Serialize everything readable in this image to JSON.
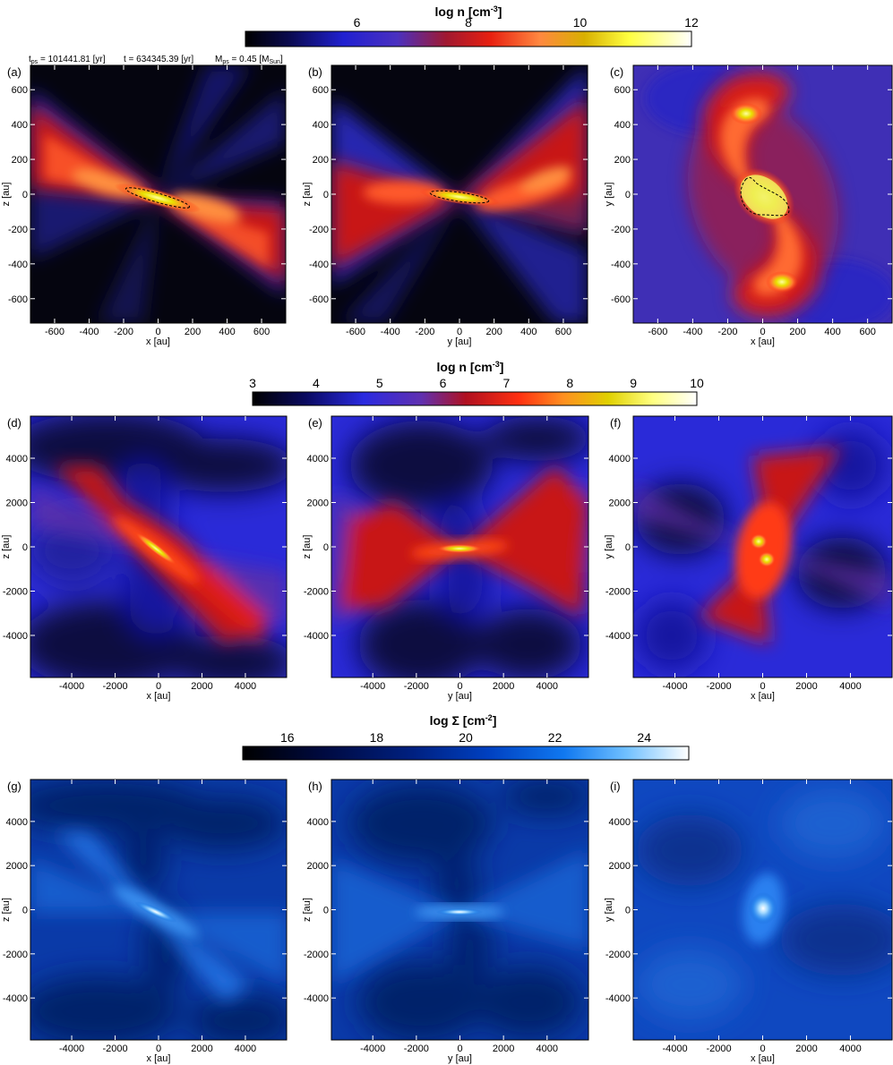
{
  "header_info": {
    "tps": "t",
    "tps_sub": "ps",
    "tps_val": " = 101441.81 [yr]",
    "t": "t = 634345.39 [yr]",
    "mps": "M",
    "mps_sub": "ps",
    "mps_val": " = 0.45 [M",
    "mps_sun": "Sun",
    "mps_close": "]"
  },
  "colorbars": [
    {
      "title": "log n [cm",
      "sup": "-3",
      "close": "]",
      "ticks": [
        "6",
        "8",
        "10",
        "12"
      ],
      "min": 4,
      "max": 12,
      "values": [
        6,
        8,
        10,
        12
      ]
    },
    {
      "title": "log n [cm",
      "sup": "-3",
      "close": "]",
      "ticks": [
        "3",
        "4",
        "5",
        "6",
        "7",
        "8",
        "9",
        "10"
      ],
      "min": 3,
      "max": 10,
      "values": [
        3,
        4,
        5,
        6,
        7,
        8,
        9,
        10
      ]
    },
    {
      "title": "log Σ [cm",
      "sup": "-2",
      "close": "]",
      "ticks": [
        "16",
        "18",
        "20",
        "22",
        "24"
      ],
      "min": 15,
      "max": 25,
      "values": [
        16,
        18,
        20,
        22,
        24
      ]
    }
  ],
  "rows": [
    {
      "ticks_y": [
        "600",
        "400",
        "200",
        "0",
        "-200",
        "-400",
        "-600"
      ],
      "ticks_x": [
        "-600",
        "-400",
        "-200",
        "0",
        "200",
        "400",
        "600"
      ],
      "range": 740,
      "tick_values": [
        -600,
        -400,
        -200,
        0,
        200,
        400,
        600
      ],
      "panels": [
        {
          "label": "(a)",
          "xlabel": "x [au]",
          "ylabel": "z [au]"
        },
        {
          "label": "(b)",
          "xlabel": "y [au]",
          "ylabel": "z [au]"
        },
        {
          "label": "(c)",
          "xlabel": "x [au]",
          "ylabel": "y [au]"
        }
      ]
    },
    {
      "ticks_y": [
        "4000",
        "2000",
        "0",
        "-2000",
        "-4000"
      ],
      "ticks_x": [
        "-4000",
        "-2000",
        "0",
        "2000",
        "4000"
      ],
      "range": 5900,
      "tick_values": [
        -4000,
        -2000,
        0,
        2000,
        4000
      ],
      "panels": [
        {
          "label": "(d)",
          "xlabel": "x [au]",
          "ylabel": "z [au]"
        },
        {
          "label": "(e)",
          "xlabel": "y [au]",
          "ylabel": "z [au]"
        },
        {
          "label": "(f)",
          "xlabel": "x [au]",
          "ylabel": "y [au]"
        }
      ]
    },
    {
      "ticks_y": [
        "4000",
        "2000",
        "0",
        "-2000",
        "-4000"
      ],
      "ticks_x": [
        "-4000",
        "-2000",
        "0",
        "2000",
        "4000"
      ],
      "range": 5900,
      "tick_values": [
        -4000,
        -2000,
        0,
        2000,
        4000
      ],
      "panels": [
        {
          "label": "(g)",
          "xlabel": "x [au]",
          "ylabel": "z [au]"
        },
        {
          "label": "(h)",
          "xlabel": "y [au]",
          "ylabel": "z [au]"
        },
        {
          "label": "(i)",
          "xlabel": "x [au]",
          "ylabel": "y [au]"
        }
      ]
    }
  ],
  "colors": {
    "cmap_density": [
      "#000000",
      "#08081a",
      "#1d1d9e",
      "#3a3ae0",
      "#6a2aa0",
      "#c01818",
      "#ff3a10",
      "#ff8a30",
      "#e0c000",
      "#ffff40",
      "#ffffff"
    ],
    "cmap_column": [
      "#000000",
      "#000830",
      "#001a70",
      "#0030a8",
      "#0050d0",
      "#1a80f0",
      "#60b8ff",
      "#ffffff"
    ]
  }
}
